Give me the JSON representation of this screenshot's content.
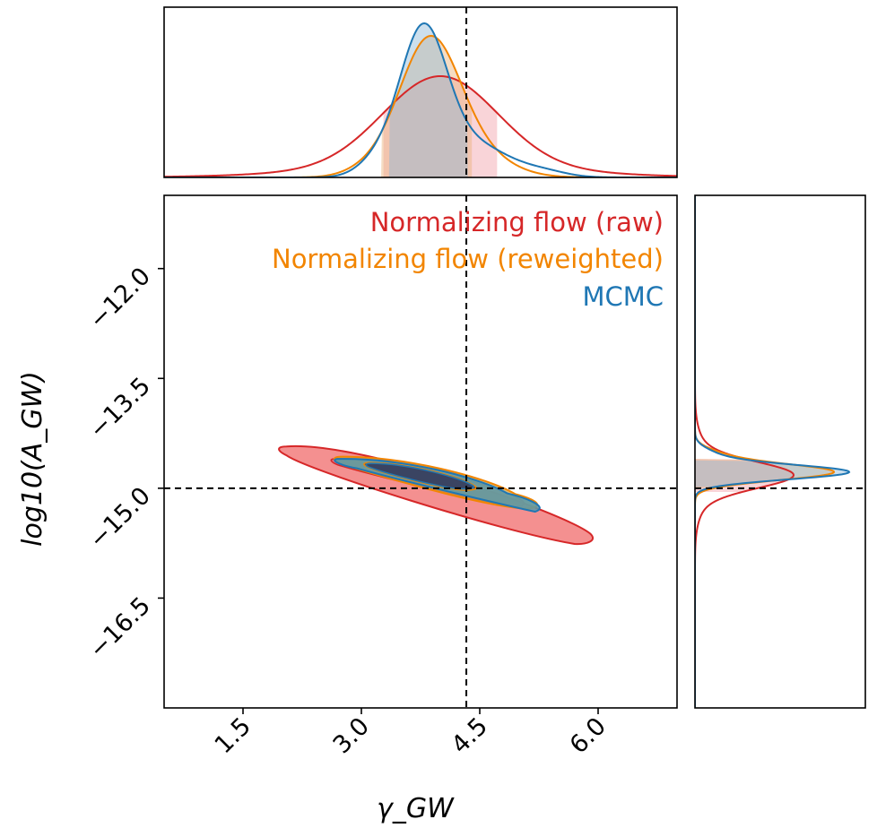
{
  "chart_data": {
    "type": "corner",
    "xlabel": "γ_GW",
    "ylabel": "log10(A_GW)",
    "xlim": [
      0.5,
      7.0
    ],
    "ylim": [
      -18.0,
      -11.0
    ],
    "xticks": [
      "1.5",
      "3.0",
      "4.5",
      "6.0"
    ],
    "xtick_values": [
      1.5,
      3.0,
      4.5,
      6.0
    ],
    "yticks": [
      "−12.0",
      "−13.5",
      "−15.0",
      "−16.5"
    ],
    "ytick_values": [
      -12.0,
      -13.5,
      -15.0,
      -16.5
    ],
    "truth": {
      "gamma": 4.33,
      "log10_A": -15.0
    },
    "legend_position": "top-right",
    "colors": {
      "raw": "#d62728",
      "reweighted": "#f28500",
      "mcmc": "#1f77b4",
      "truth": "#000000"
    },
    "series": [
      {
        "name": "Normalizing flow (raw)",
        "key": "raw",
        "gamma_mean": 4.0,
        "gamma_sd": 0.75,
        "gamma_interval": [
          3.28,
          4.72
        ],
        "log10A_mean": -14.85,
        "log10A_sd": 0.28,
        "log10A_interval": [
          -15.05,
          -14.6
        ],
        "contour_2d": {
          "center": [
            4.0,
            -14.85
          ],
          "semi_axes": [
            2.05,
            0.2
          ],
          "angle_deg": -23.5
        }
      },
      {
        "name": "Normalizing flow (reweighted)",
        "key": "reweighted",
        "gamma_mean": 3.85,
        "gamma_sd": 0.5,
        "gamma_interval": [
          3.25,
          4.4
        ],
        "log10A_mean": -14.72,
        "log10A_sd": 0.17,
        "log10A_interval": [
          -15.0,
          -14.6
        ],
        "contour_2d": {
          "center": [
            3.9,
            -14.72
          ],
          "semi_axes": [
            1.35,
            0.14
          ],
          "angle_deg": -22
        }
      },
      {
        "name": "MCMC",
        "key": "mcmc",
        "gamma_mean": 3.85,
        "gamma_sd": 0.45,
        "gamma_interval": [
          3.35,
          4.35
        ],
        "log10A_mean": -14.72,
        "log10A_sd": 0.15,
        "log10A_interval": [
          -14.98,
          -14.62
        ],
        "contour_2d": {
          "center": [
            3.9,
            -14.72
          ],
          "semi_axes": [
            1.3,
            0.13
          ],
          "angle_deg": -22
        }
      }
    ]
  }
}
